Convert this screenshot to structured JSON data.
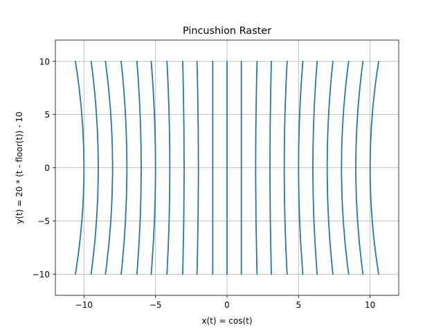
{
  "chart_data": {
    "type": "line",
    "title": "Pincushion Raster",
    "xlabel": "x(t) = cos(t)",
    "ylabel": "y(t) = 20 * (t - floor(t)) - 10",
    "xlim": [
      -12,
      12
    ],
    "ylim": [
      -12,
      12
    ],
    "xticks": [
      -10,
      -5,
      0,
      5,
      10
    ],
    "yticks": [
      -10,
      -5,
      0,
      5,
      10
    ],
    "xtick_labels": [
      "−10",
      "−5",
      "0",
      "5",
      "10"
    ],
    "ytick_labels": [
      "−10",
      "−5",
      "0",
      "5",
      "10"
    ],
    "grid": true,
    "line_color": "#1f77b4",
    "series": [
      {
        "values": [
          {
            "x": -10.6,
            "y": 10
          },
          {
            "x": -10.0,
            "y": 0
          },
          {
            "x": -10.6,
            "y": -10
          }
        ]
      },
      {
        "values": [
          {
            "x": -9.5,
            "y": 10
          },
          {
            "x": -9.0,
            "y": 0
          },
          {
            "x": -9.5,
            "y": -10
          }
        ]
      },
      {
        "values": [
          {
            "x": -8.5,
            "y": 10
          },
          {
            "x": -8.0,
            "y": 0
          },
          {
            "x": -8.5,
            "y": -10
          }
        ]
      },
      {
        "values": [
          {
            "x": -7.4,
            "y": 10
          },
          {
            "x": -7.0,
            "y": 0
          },
          {
            "x": -7.4,
            "y": -10
          }
        ]
      },
      {
        "values": [
          {
            "x": -6.3,
            "y": 10
          },
          {
            "x": -6.0,
            "y": 0
          },
          {
            "x": -6.3,
            "y": -10
          }
        ]
      },
      {
        "values": [
          {
            "x": -5.3,
            "y": 10
          },
          {
            "x": -5.0,
            "y": 0
          },
          {
            "x": -5.3,
            "y": -10
          }
        ]
      },
      {
        "values": [
          {
            "x": -4.2,
            "y": 10
          },
          {
            "x": -4.0,
            "y": 0
          },
          {
            "x": -4.2,
            "y": -10
          }
        ]
      },
      {
        "values": [
          {
            "x": -3.1,
            "y": 10
          },
          {
            "x": -3.0,
            "y": 0
          },
          {
            "x": -3.1,
            "y": -10
          }
        ]
      },
      {
        "values": [
          {
            "x": -2.1,
            "y": 10
          },
          {
            "x": -2.0,
            "y": 0
          },
          {
            "x": -2.1,
            "y": -10
          }
        ]
      },
      {
        "values": [
          {
            "x": -1.0,
            "y": 10
          },
          {
            "x": -1.0,
            "y": 0
          },
          {
            "x": -1.0,
            "y": -10
          }
        ]
      },
      {
        "values": [
          {
            "x": 0.0,
            "y": 10
          },
          {
            "x": 0.0,
            "y": 0
          },
          {
            "x": 0.0,
            "y": -10
          }
        ]
      },
      {
        "values": [
          {
            "x": 1.0,
            "y": 10
          },
          {
            "x": 1.0,
            "y": 0
          },
          {
            "x": 1.0,
            "y": -10
          }
        ]
      },
      {
        "values": [
          {
            "x": 2.1,
            "y": 10
          },
          {
            "x": 2.0,
            "y": 0
          },
          {
            "x": 2.1,
            "y": -10
          }
        ]
      },
      {
        "values": [
          {
            "x": 3.1,
            "y": 10
          },
          {
            "x": 3.0,
            "y": 0
          },
          {
            "x": 3.1,
            "y": -10
          }
        ]
      },
      {
        "values": [
          {
            "x": 4.2,
            "y": 10
          },
          {
            "x": 4.0,
            "y": 0
          },
          {
            "x": 4.2,
            "y": -10
          }
        ]
      },
      {
        "values": [
          {
            "x": 5.3,
            "y": 10
          },
          {
            "x": 5.0,
            "y": 0
          },
          {
            "x": 5.3,
            "y": -10
          }
        ]
      },
      {
        "values": [
          {
            "x": 6.3,
            "y": 10
          },
          {
            "x": 6.0,
            "y": 0
          },
          {
            "x": 6.3,
            "y": -10
          }
        ]
      },
      {
        "values": [
          {
            "x": 7.4,
            "y": 10
          },
          {
            "x": 7.0,
            "y": 0
          },
          {
            "x": 7.4,
            "y": -10
          }
        ]
      },
      {
        "values": [
          {
            "x": 8.5,
            "y": 10
          },
          {
            "x": 8.0,
            "y": 0
          },
          {
            "x": 8.5,
            "y": -10
          }
        ]
      },
      {
        "values": [
          {
            "x": 9.5,
            "y": 10
          },
          {
            "x": 9.0,
            "y": 0
          },
          {
            "x": 9.5,
            "y": -10
          }
        ]
      },
      {
        "values": [
          {
            "x": 10.6,
            "y": 10
          },
          {
            "x": 10.0,
            "y": 0
          },
          {
            "x": 10.6,
            "y": -10
          }
        ]
      }
    ]
  }
}
